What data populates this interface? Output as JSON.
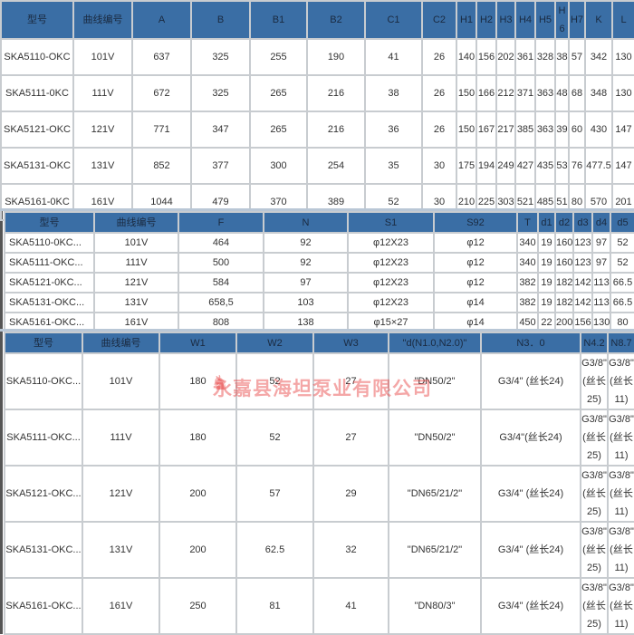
{
  "table1": {
    "headers": [
      "型号",
      "曲线编号",
      "A",
      "B",
      "B1",
      "B2",
      "C1",
      "C2",
      "H1",
      "H2",
      "H3",
      "H4",
      "H5",
      "H6",
      "H7",
      "K",
      "L"
    ],
    "rows": [
      [
        "SKA5110-OKC",
        "101V",
        "637",
        "325",
        "255",
        "190",
        "41",
        "26",
        "140",
        "156",
        "202",
        "361",
        "328",
        "38",
        "57",
        "342",
        "130"
      ],
      [
        "SKA5111-0KC",
        "111V",
        "672",
        "325",
        "265",
        "216",
        "38",
        "26",
        "150",
        "166",
        "212",
        "371",
        "363",
        "48",
        "68",
        "348",
        "130"
      ],
      [
        "SKA5121-OKC",
        "121V",
        "771",
        "347",
        "265",
        "216",
        "36",
        "26",
        "150",
        "167",
        "217",
        "385",
        "363",
        "39",
        "60",
        "430",
        "147"
      ],
      [
        "SKA5131-OKC",
        "131V",
        "852",
        "377",
        "300",
        "254",
        "35",
        "30",
        "175",
        "194",
        "249",
        "427",
        "435",
        "53",
        "76",
        "477.5",
        "147"
      ],
      [
        "SKA5161-0KC",
        "161V",
        "1044",
        "479",
        "370",
        "389",
        "52",
        "30",
        "210",
        "225",
        "303",
        "521",
        "485",
        "51",
        "80",
        "570",
        "201"
      ]
    ]
  },
  "table2": {
    "headers": [
      "型号",
      "曲线编号",
      "F",
      "N",
      "S1",
      "S92",
      "T",
      "d1",
      "d2",
      "d3",
      "d4",
      "d5"
    ],
    "rows": [
      [
        "SKA5110-0KC...",
        "101V",
        "464",
        "92",
        "φ12X23",
        "φ12",
        "340",
        "19",
        "160",
        "123",
        "97",
        "52"
      ],
      [
        "SKA5111-OKC...",
        "111V",
        "500",
        "92",
        "φ12X23",
        "φ12",
        "340",
        "19",
        "160",
        "123",
        "97",
        "52"
      ],
      [
        "SKA5121-0KC...",
        "121V",
        "584",
        "97",
        "φ12X23",
        "φ12",
        "382",
        "19",
        "182",
        "142",
        "113",
        "66.5"
      ],
      [
        "SKA5131-OKC...",
        "131V",
        "658,5",
        "103",
        "φ12X23",
        "φ14",
        "382",
        "19",
        "182",
        "142",
        "113",
        "66.5"
      ],
      [
        "SKA5161-OKC...",
        "161V",
        "808",
        "138",
        "φ15×27",
        "φ14",
        "450",
        "22",
        "200",
        "156",
        "130",
        "80"
      ]
    ]
  },
  "table3": {
    "headers": [
      "型号",
      "曲线编号",
      "W1",
      "W2",
      "W3",
      "\"d(N1.0,N2.0)\"",
      "N3．0",
      "N4.2",
      "N8.7"
    ],
    "rows": [
      [
        "SKA5110-OKC...",
        "101V",
        "180",
        "52",
        "27",
        "\"DN50/2\"",
        "G3/4\" (丝长24)",
        "G3/8\" (丝长25)",
        "G3/8\" (丝长11)"
      ],
      [
        "SKA5111-OKC...",
        "111V",
        "180",
        "52",
        "27",
        "\"DN50/2\"",
        "G3/4\"(丝长24)",
        "G3/8\" (丝长25)",
        "G3/8\" (丝长11)"
      ],
      [
        "SKA5121-OKC...",
        "121V",
        "200",
        "57",
        "29",
        "\"DN65/21/2\"",
        "G3/4\" (丝长24)",
        "G3/8\" (丝长25)",
        "G3/8\" (丝长11)"
      ],
      [
        "SKA5131-OKC...",
        "131V",
        "200",
        "62.5",
        "32",
        "\"DN65/21/2\"",
        "G3/4\" (丝长24)",
        "G3/8\" (丝长25)",
        "G3/8\" (丝长11)"
      ],
      [
        "SKA5161-OKC...",
        "161V",
        "250",
        "81",
        "41",
        "\"DN80/3\"",
        "G3/4\" (丝长24)",
        "G3/8\" (丝长25)",
        "G3/8\" (丝长11)"
      ]
    ]
  },
  "watermark": {
    "text": "永嘉县海坦泵业有限公司",
    "color": "#e63c3c"
  },
  "colors": {
    "header_bg": "#3a6ea5",
    "border": "#c8ccd0"
  }
}
